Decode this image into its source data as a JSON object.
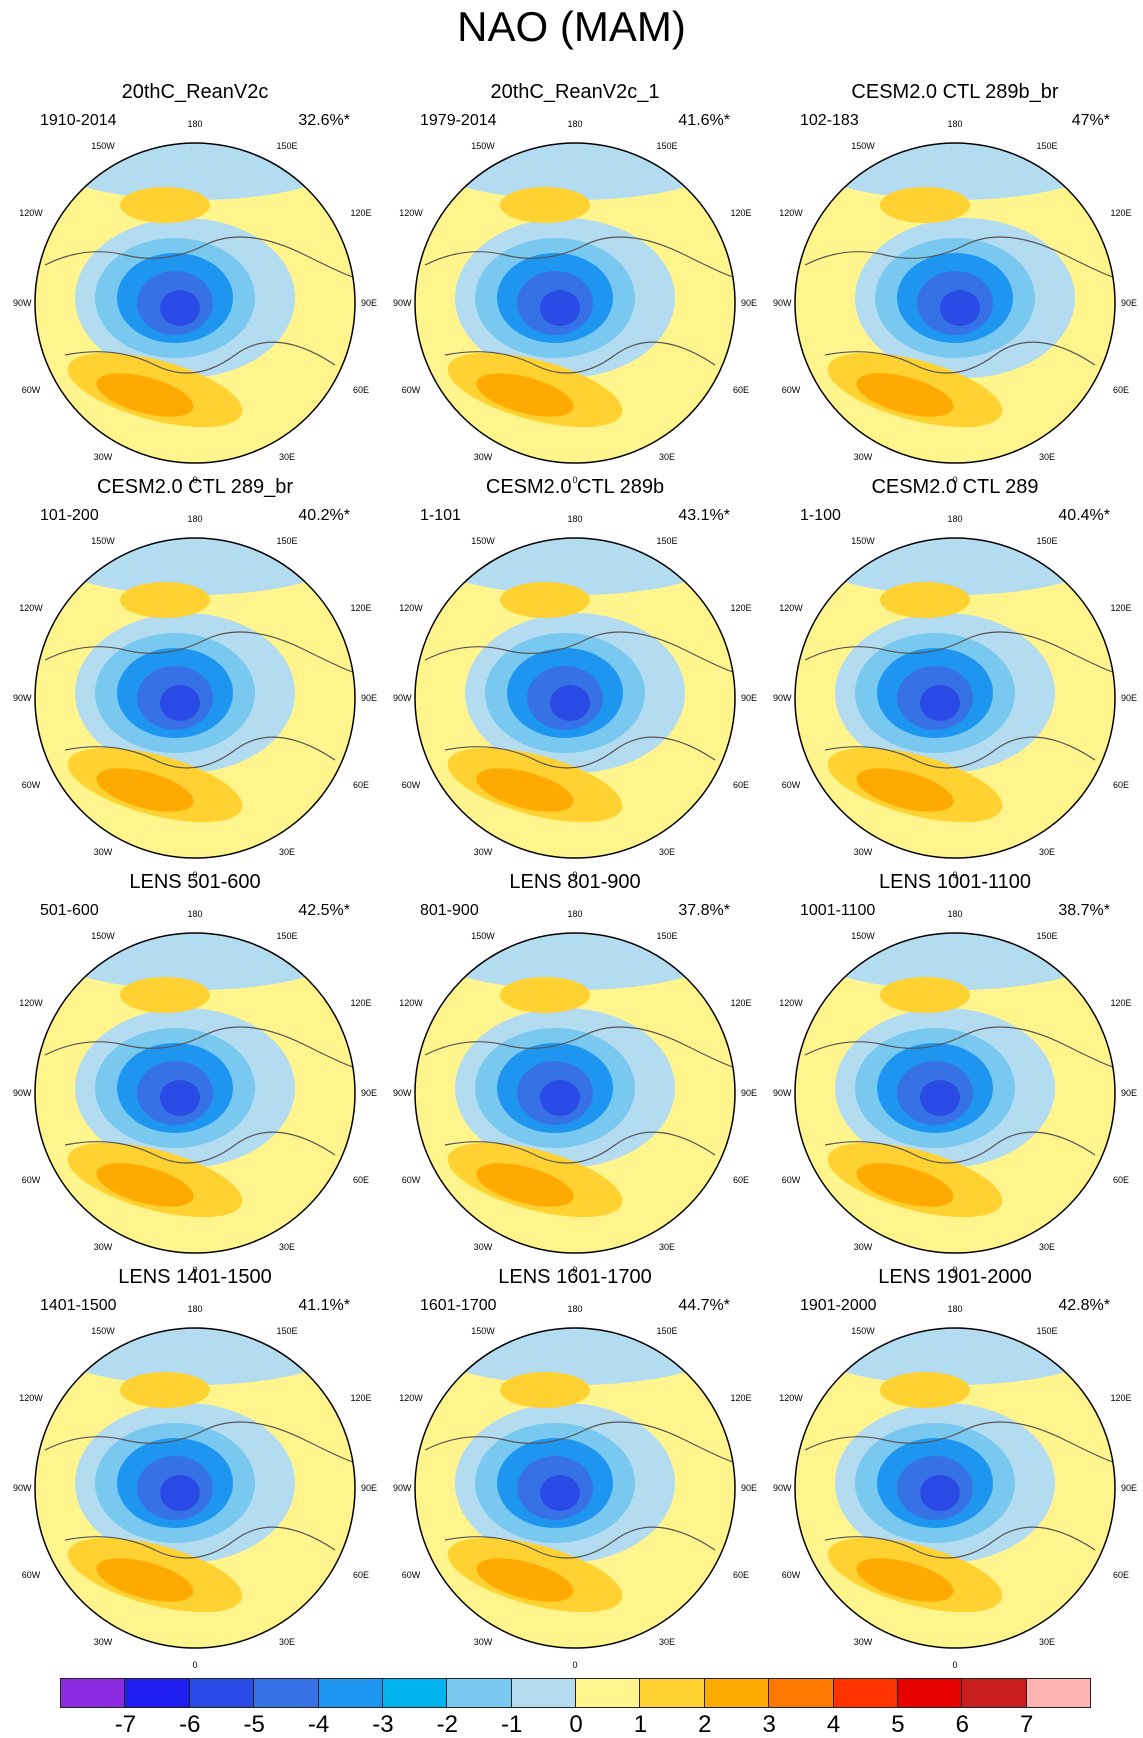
{
  "title": "NAO (MAM)",
  "longitude_labels": [
    "180",
    "150W",
    "150E",
    "120W",
    "120E",
    "90W",
    "90E",
    "60W",
    "60E",
    "30W",
    "30E",
    "0"
  ],
  "panels": [
    {
      "title": "20thC_ReanV2c",
      "period": "1910-2014",
      "explained_variance": "32.6%*"
    },
    {
      "title": "20thC_ReanV2c_1",
      "period": "1979-2014",
      "explained_variance": "41.6%*"
    },
    {
      "title": "CESM2.0 CTL 289b_br",
      "period": "102-183",
      "explained_variance": "47%*"
    },
    {
      "title": "CESM2.0 CTL 289_br",
      "period": "101-200",
      "explained_variance": "40.2%*"
    },
    {
      "title": "CESM2.0 CTL 289b",
      "period": "1-101",
      "explained_variance": "43.1%*"
    },
    {
      "title": "CESM2.0 CTL 289",
      "period": "1-100",
      "explained_variance": "40.4%*"
    },
    {
      "title": "LENS 501-600",
      "period": "501-600",
      "explained_variance": "42.5%*"
    },
    {
      "title": "LENS 801-900",
      "period": "801-900",
      "explained_variance": "37.8%*"
    },
    {
      "title": "LENS 1001-1100",
      "period": "1001-1100",
      "explained_variance": "38.7%*"
    },
    {
      "title": "LENS 1401-1500",
      "period": "1401-1500",
      "explained_variance": "41.1%*"
    },
    {
      "title": "LENS 1601-1700",
      "period": "1601-1700",
      "explained_variance": "44.7%*"
    },
    {
      "title": "LENS 1901-2000",
      "period": "1901-2000",
      "explained_variance": "42.8%*"
    }
  ],
  "colorbar": {
    "labels": [
      "-7",
      "-6",
      "-5",
      "-4",
      "-3",
      "-2",
      "-1",
      "0",
      "1",
      "2",
      "3",
      "4",
      "5",
      "6",
      "7"
    ],
    "colors": [
      "#8a2be2",
      "#1e1ef0",
      "#2a4ae6",
      "#3672e6",
      "#1e96f0",
      "#00b4f0",
      "#78c8f0",
      "#b4dcf0",
      "#fff58c",
      "#ffd232",
      "#ffaa00",
      "#ff7800",
      "#ff3200",
      "#e60000",
      "#c81e1e",
      "#ffb4b4"
    ]
  },
  "palette": {
    "ocean_neutral": "#fff58c",
    "neg1": "#b4dcf0",
    "neg2": "#78c8f0",
    "neg3": "#1e96f0",
    "neg4": "#3672e6",
    "neg5": "#2a4ae6",
    "pos1": "#ffd232",
    "pos2": "#ffaa00",
    "pos3": "#ff7800",
    "coast": "#555555"
  }
}
